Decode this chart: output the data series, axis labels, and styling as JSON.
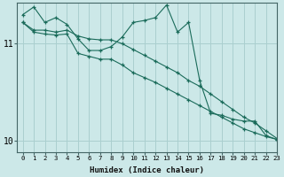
{
  "xlabel": "Humidex (Indice chaleur)",
  "background_color": "#cce8e8",
  "grid_color": "#aacfcf",
  "line_color": "#1a6b5a",
  "xlim": [
    -0.5,
    23
  ],
  "ylim": [
    9.88,
    11.42
  ],
  "yticks": [
    10,
    11
  ],
  "xticks": [
    0,
    1,
    2,
    3,
    4,
    5,
    6,
    7,
    8,
    9,
    10,
    11,
    12,
    13,
    14,
    15,
    16,
    17,
    18,
    19,
    20,
    21,
    22,
    23
  ],
  "series": [
    [
      11.3,
      11.38,
      11.22,
      11.27,
      11.2,
      11.05,
      10.93,
      10.93,
      10.97,
      11.07,
      11.22,
      11.24,
      11.27,
      11.4,
      11.12,
      11.22,
      10.62,
      10.28,
      10.26,
      10.22,
      10.2,
      10.2,
      10.05,
      10.01
    ],
    [
      11.22,
      11.14,
      11.14,
      11.12,
      11.14,
      11.08,
      11.05,
      11.04,
      11.04,
      11.0,
      10.94,
      10.88,
      10.82,
      10.76,
      10.7,
      10.62,
      10.56,
      10.48,
      10.4,
      10.32,
      10.24,
      10.18,
      10.1,
      10.02
    ],
    [
      11.22,
      11.12,
      11.1,
      11.09,
      11.1,
      10.9,
      10.87,
      10.84,
      10.84,
      10.78,
      10.7,
      10.65,
      10.6,
      10.54,
      10.48,
      10.42,
      10.36,
      10.3,
      10.24,
      10.18,
      10.12,
      10.08,
      10.04,
      10.01
    ]
  ]
}
